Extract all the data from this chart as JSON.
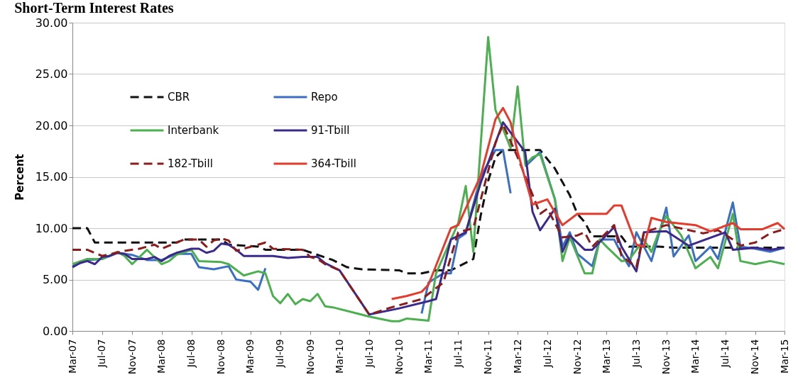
{
  "chart_data": {
    "type": "line",
    "title": "Short-Term Interest Rates",
    "ylabel": "Percent",
    "grid": "y",
    "legend": "top left",
    "xlim": [
      "2007-03",
      "2015-03"
    ],
    "xticks": [
      {
        "value": "2007-03",
        "label": "Mar-07"
      },
      {
        "value": "2007-07",
        "label": "Jul-07"
      },
      {
        "value": "2007-11",
        "label": "Nov-07"
      },
      {
        "value": "2008-03",
        "label": "Mar-08"
      },
      {
        "value": "2008-07",
        "label": "Jul-08"
      },
      {
        "value": "2008-11",
        "label": "Nov-08"
      },
      {
        "value": "2009-03",
        "label": "Mar-09"
      },
      {
        "value": "2009-07",
        "label": "Jul-09"
      },
      {
        "value": "2009-11",
        "label": "Nov-09"
      },
      {
        "value": "2010-03",
        "label": "Mar-10"
      },
      {
        "value": "2010-07",
        "label": "Jul-10"
      },
      {
        "value": "2010-11",
        "label": "Nov-10"
      },
      {
        "value": "2011-03",
        "label": "Mar-11"
      },
      {
        "value": "2011-07",
        "label": "Jul-11"
      },
      {
        "value": "2011-11",
        "label": "Nov-11"
      },
      {
        "value": "2012-03",
        "label": "Mar-12"
      },
      {
        "value": "2012-07",
        "label": "Jul-12"
      },
      {
        "value": "2012-11",
        "label": "Nov-12"
      },
      {
        "value": "2013-03",
        "label": "Mar-13"
      },
      {
        "value": "2013-07",
        "label": "Jul-13"
      },
      {
        "value": "2013-11",
        "label": "Nov-13"
      },
      {
        "value": "2014-03",
        "label": "Mar-14"
      },
      {
        "value": "2014-07",
        "label": "Jul-14"
      },
      {
        "value": "2014-11",
        "label": "Nov-14"
      },
      {
        "value": "2015-03",
        "label": "Mar-15"
      }
    ],
    "ylim": [
      0,
      30
    ],
    "yticks": [
      {
        "value": 0,
        "label": "0.00"
      },
      {
        "value": 5,
        "label": "5.00"
      },
      {
        "value": 10,
        "label": "10.00"
      },
      {
        "value": 15,
        "label": "15.00"
      },
      {
        "value": 20,
        "label": "20.00"
      },
      {
        "value": 25,
        "label": "25.00"
      },
      {
        "value": 30,
        "label": "30.00"
      }
    ],
    "series": [
      {
        "name": "CBR",
        "color": "#111111",
        "line_style": "dashed",
        "x": [
          "2007-03",
          "2007-05",
          "2007-06",
          "2008-05",
          "2008-06",
          "2008-11",
          "2008-12",
          "2009-04",
          "2009-05",
          "2009-10",
          "2010-02",
          "2010-04",
          "2010-06",
          "2010-11",
          "2010-12",
          "2011-02",
          "2011-04",
          "2011-06",
          "2011-09",
          "2011-10",
          "2011-11",
          "2011-12",
          "2012-01",
          "2012-06",
          "2012-08",
          "2012-10",
          "2012-11",
          "2012-12",
          "2013-01",
          "2013-05",
          "2013-06",
          "2013-10",
          "2013-12",
          "2014-06",
          "2015-03"
        ],
        "values": [
          10,
          10,
          8.6,
          8.6,
          8.9,
          8.9,
          8.4,
          8.2,
          7.9,
          7.9,
          6.9,
          6.2,
          6.0,
          5.9,
          5.6,
          5.6,
          5.9,
          5.9,
          7.0,
          11.2,
          14.6,
          16.9,
          17.6,
          17.6,
          15.8,
          13.2,
          11.4,
          10.6,
          9.2,
          9.2,
          8.2,
          8.2,
          8.1,
          8.1,
          8.1
        ]
      },
      {
        "name": "Repo",
        "color": "#3a6fc4",
        "line_style": "solid",
        "x": [
          "2007-03",
          "2007-05",
          "2007-07",
          "2007-09",
          "2007-11",
          "2008-01",
          "2008-03",
          "2008-05",
          "2008-07",
          "2008-08",
          "2008-10",
          "2008-12",
          "2009-01",
          "2009-03",
          "2009-04",
          "2009-05",
          "2009-06",
          "2011-02",
          "2011-03",
          "2011-05",
          "2011-06",
          "2011-07",
          "2011-08",
          "2011-10",
          "2011-12",
          "2012-01",
          "2012-02",
          "2012-03",
          "2012-04",
          "2012-06",
          "2012-08",
          "2012-09",
          "2012-10",
          "2012-11",
          "2013-01",
          "2013-02",
          "2013-04",
          "2013-05",
          "2013-06",
          "2013-07",
          "2013-09",
          "2013-11",
          "2013-12",
          "2014-02",
          "2014-03",
          "2014-05",
          "2014-06",
          "2014-08",
          "2014-09",
          "2014-11",
          "2015-01",
          "2015-03"
        ],
        "values": [
          6.3,
          6.9,
          7.0,
          7.6,
          7.4,
          6.9,
          6.9,
          7.5,
          7.5,
          6.2,
          6.0,
          6.3,
          5.0,
          4.8,
          4.0,
          6.1,
          null,
          1.7,
          4.7,
          5.6,
          5.6,
          9.0,
          9.5,
          15.0,
          17.6,
          17.6,
          13.4,
          null,
          16.0,
          17.4,
          12.8,
          8.2,
          9.6,
          7.5,
          6.3,
          8.9,
          8.9,
          7.5,
          6.3,
          9.6,
          6.8,
          12.0,
          7.25,
          9.3,
          6.8,
          8.2,
          7.0,
          12.5,
          8.2,
          8.0,
          7.7,
          8.1
        ]
      },
      {
        "name": "Interbank",
        "color": "#4caf50",
        "line_style": "solid",
        "x": [
          "2007-03",
          "2007-05",
          "2007-07",
          "2007-09",
          "2007-10",
          "2007-11",
          "2008-01",
          "2008-03",
          "2008-04",
          "2008-05",
          "2008-07",
          "2008-08",
          "2008-11",
          "2008-12",
          "2009-02",
          "2009-04",
          "2009-05",
          "2009-06",
          "2009-07",
          "2009-08",
          "2009-09",
          "2009-10",
          "2009-11",
          "2009-12",
          "2010-01",
          "2010-02",
          "2010-07",
          "2010-10",
          "2010-11",
          "2010-12",
          "2011-03",
          "2011-04",
          "2011-07",
          "2011-08",
          "2011-09",
          "2011-11",
          "2011-12",
          "2012-02",
          "2012-03",
          "2012-04",
          "2012-05",
          "2012-06",
          "2012-08",
          "2012-09",
          "2012-10",
          "2012-12",
          "2013-01",
          "2013-02",
          "2013-03",
          "2013-05",
          "2013-06",
          "2013-08",
          "2013-09",
          "2013-10",
          "2013-11",
          "2014-01",
          "2014-03",
          "2014-05",
          "2014-06",
          "2014-08",
          "2014-09",
          "2014-11",
          "2015-01",
          "2015-03"
        ],
        "values": [
          6.5,
          7.0,
          7.0,
          7.7,
          7.3,
          6.5,
          7.9,
          6.5,
          6.8,
          7.4,
          7.9,
          6.8,
          6.7,
          6.5,
          5.4,
          5.8,
          5.6,
          3.4,
          2.7,
          3.6,
          2.6,
          3.1,
          2.9,
          3.6,
          2.4,
          2.3,
          1.4,
          0.95,
          0.95,
          1.2,
          1.0,
          5.6,
          10.5,
          14.1,
          7.7,
          28.6,
          21.5,
          17.8,
          23.8,
          16.2,
          16.9,
          17.2,
          12.8,
          6.8,
          9.1,
          5.6,
          5.6,
          8.9,
          8.2,
          6.8,
          6.9,
          8.9,
          7.7,
          9.6,
          11.2,
          9.3,
          6.1,
          7.2,
          6.1,
          11.4,
          6.8,
          6.5,
          6.8,
          6.5
        ]
      },
      {
        "name": "91-Tbill",
        "color": "#3b2a8c",
        "line_style": "solid",
        "x": [
          "2007-03",
          "2007-04",
          "2007-05",
          "2007-06",
          "2007-07",
          "2007-08",
          "2007-09",
          "2007-10",
          "2007-11",
          "2008-01",
          "2008-02",
          "2008-03",
          "2008-04",
          "2008-05",
          "2008-07",
          "2008-08",
          "2008-09",
          "2008-10",
          "2008-11",
          "2008-12",
          "2009-01",
          "2009-02",
          "2009-06",
          "2009-08",
          "2009-10",
          "2009-12",
          "2010-01",
          "2010-03",
          "2010-07",
          "2010-11",
          "2011-03",
          "2011-04",
          "2011-06",
          "2011-08",
          "2011-10",
          "2012-01",
          "2012-04",
          "2012-05",
          "2012-06",
          "2012-08",
          "2012-09",
          "2012-10",
          "2012-12",
          "2013-01",
          "2013-04",
          "2013-05",
          "2013-07",
          "2013-08",
          "2013-11",
          "2014-02",
          "2014-07",
          "2014-08",
          "2014-11",
          "2015-01",
          "2015-03"
        ],
        "values": [
          6.2,
          6.6,
          6.8,
          6.5,
          7.2,
          7.3,
          7.6,
          7.5,
          7.0,
          7.0,
          7.2,
          6.8,
          7.3,
          7.6,
          8.0,
          8.0,
          7.6,
          7.8,
          8.5,
          8.4,
          7.9,
          7.3,
          7.3,
          7.1,
          7.2,
          7.2,
          6.6,
          5.9,
          1.6,
          2.2,
          2.9,
          3.1,
          8.9,
          9.6,
          14.4,
          20.3,
          17.4,
          11.6,
          9.8,
          11.9,
          7.7,
          9.3,
          7.9,
          7.9,
          10.1,
          8.2,
          5.8,
          9.6,
          9.7,
          8.3,
          9.6,
          7.9,
          8.1,
          7.9,
          8.1
        ]
      },
      {
        "name": "182-Tbill",
        "color": "#8b1c1c",
        "line_style": "dashed",
        "x": [
          "2007-03",
          "2007-05",
          "2007-07",
          "2007-10",
          "2007-12",
          "2008-02",
          "2008-03",
          "2008-04",
          "2008-06",
          "2008-08",
          "2008-09",
          "2008-10",
          "2008-11",
          "2008-12",
          "2009-01",
          "2009-02",
          "2009-04",
          "2009-05",
          "2009-06",
          "2009-10",
          "2009-11",
          "2009-12",
          "2010-01",
          "2010-03",
          "2010-07",
          "2010-10",
          "2011-02",
          "2011-05",
          "2011-07",
          "2011-09",
          "2011-12",
          "2012-01",
          "2012-03",
          "2012-06",
          "2012-07",
          "2012-09",
          "2012-11",
          "2012-12",
          "2013-01",
          "2013-04",
          "2013-05",
          "2013-07",
          "2013-08",
          "2013-11",
          "2014-04",
          "2014-06",
          "2014-08",
          "2014-09",
          "2014-11",
          "2015-01",
          "2015-03"
        ],
        "values": [
          7.9,
          7.9,
          7.3,
          7.8,
          8.0,
          8.4,
          8.0,
          8.3,
          8.9,
          8.9,
          8.2,
          8.8,
          9.0,
          8.8,
          7.8,
          8.0,
          8.4,
          8.6,
          8.0,
          7.9,
          7.2,
          7.0,
          6.5,
          5.9,
          1.6,
          2.3,
          3.1,
          4.7,
          9.6,
          10.0,
          18.3,
          20.1,
          16.9,
          11.4,
          11.9,
          9.1,
          9.3,
          9.6,
          8.2,
          10.3,
          7.3,
          6.2,
          9.6,
          10.3,
          9.5,
          9.8,
          8.9,
          8.3,
          8.6,
          9.5,
          9.9
        ]
      },
      {
        "name": "364-Tbill",
        "color": "#e53b2c",
        "line_style": "solid",
        "x": [
          "2010-10",
          "2010-12",
          "2011-02",
          "2011-03",
          "2011-06",
          "2011-07",
          "2011-10",
          "2011-12",
          "2012-01",
          "2012-02",
          "2012-03",
          "2012-05",
          "2012-07",
          "2012-09",
          "2012-11",
          "2013-01",
          "2013-03",
          "2013-04",
          "2013-05",
          "2013-07",
          "2013-08",
          "2013-09",
          "2013-11",
          "2014-03",
          "2014-05",
          "2014-08",
          "2014-09",
          "2014-12",
          "2015-02",
          "2015-03"
        ],
        "values": [
          3.1,
          3.4,
          3.8,
          4.5,
          10.0,
          10.3,
          15.1,
          20.6,
          21.7,
          20.3,
          17.4,
          12.3,
          12.8,
          10.3,
          11.4,
          11.4,
          11.4,
          12.2,
          12.2,
          8.4,
          8.2,
          11.0,
          10.6,
          10.3,
          9.7,
          10.5,
          9.9,
          9.9,
          10.5,
          9.9
        ]
      }
    ]
  }
}
